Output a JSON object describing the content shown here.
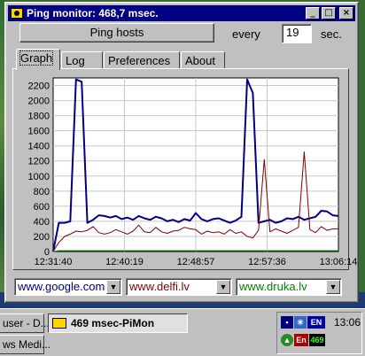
{
  "window": {
    "title": "Ping monitor: 468,7 msec."
  },
  "toolbar": {
    "ping_button": "Ping hosts",
    "every_label": "every",
    "interval_value": "19",
    "sec_label": "sec."
  },
  "tabs": [
    {
      "label": "Graph",
      "active": true
    },
    {
      "label": "Log"
    },
    {
      "label": "Preferences"
    },
    {
      "label": "About"
    }
  ],
  "chart_data": {
    "type": "line",
    "y_ticks": [
      "0",
      "200",
      "400",
      "600",
      "800",
      "1000",
      "1200",
      "1400",
      "1600",
      "1800",
      "2000",
      "2200"
    ],
    "ylim": [
      0,
      2300
    ],
    "x_ticks": [
      "12:31:40",
      "12:40:19",
      "12:48:57",
      "12:57:36",
      "13:06:14"
    ],
    "x": [
      0,
      2,
      4,
      6,
      8,
      10,
      12,
      14,
      16,
      18,
      20,
      22,
      24,
      26,
      28,
      30,
      32,
      34,
      36,
      38,
      40,
      42,
      44,
      46,
      48,
      50,
      52,
      54,
      56,
      58,
      60,
      62,
      64,
      66,
      68,
      70,
      72,
      74,
      76,
      78,
      80,
      82,
      84,
      86,
      88,
      90,
      92,
      94,
      96,
      98,
      100
    ],
    "series": [
      {
        "color": "#000080",
        "width": 2,
        "values": [
          0,
          380,
          380,
          400,
          2280,
          2250,
          380,
          420,
          480,
          470,
          450,
          470,
          430,
          450,
          420,
          470,
          440,
          420,
          460,
          440,
          400,
          420,
          390,
          430,
          410,
          510,
          430,
          400,
          430,
          440,
          410,
          380,
          410,
          460,
          2280,
          2100,
          380,
          400,
          420,
          380,
          400,
          440,
          430,
          460,
          420,
          440,
          460,
          540,
          530,
          480,
          470
        ]
      },
      {
        "color": "#800000",
        "width": 1,
        "values": [
          0,
          120,
          200,
          230,
          270,
          260,
          280,
          330,
          250,
          230,
          250,
          290,
          260,
          230,
          270,
          350,
          260,
          250,
          320,
          260,
          240,
          270,
          280,
          320,
          300,
          290,
          230,
          270,
          250,
          260,
          230,
          290,
          240,
          260,
          200,
          180,
          280,
          1220,
          260,
          300,
          270,
          240,
          280,
          320,
          1320,
          290,
          250,
          330,
          280,
          300,
          300
        ]
      },
      {
        "color": "#008000",
        "width": 1,
        "values": [
          0,
          10,
          10,
          10,
          10,
          10,
          10,
          10,
          10,
          10,
          10,
          10,
          10,
          10,
          10,
          10,
          10,
          10,
          10,
          10,
          10,
          10,
          10,
          10,
          10,
          10,
          10,
          10,
          10,
          10,
          10,
          10,
          10,
          10,
          10,
          10,
          10,
          10,
          10,
          10,
          10,
          10,
          10,
          10,
          10,
          10,
          10,
          10,
          10,
          10,
          10
        ]
      }
    ]
  },
  "hosts": [
    {
      "value": "www.google.com",
      "color": "#000080"
    },
    {
      "value": "www.delfi.lv",
      "color": "#800000"
    },
    {
      "value": "www.druka.lv",
      "color": "#008000"
    }
  ],
  "taskbar": {
    "items": [
      {
        "label": "user - D..."
      },
      {
        "label": "469 msec-PiMon",
        "active": true
      },
      {
        "label": "ws Medi..."
      }
    ],
    "tray": {
      "lang1": "EN",
      "lang2": "En",
      "ping": "469",
      "clock": "13:06"
    }
  }
}
